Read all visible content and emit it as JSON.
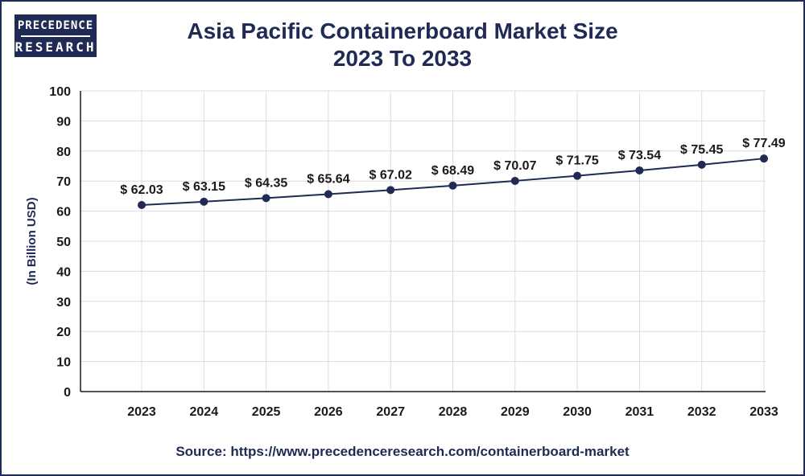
{
  "logo": {
    "line1": "PRECEDENCE",
    "line2": "RESEARCH"
  },
  "header": {
    "title_line1": "Asia Pacific Containerboard Market Size",
    "title_line2": "2023 To 2033"
  },
  "footer": {
    "source": "Source: https://www.precedenceresearch.com/containerboard-market"
  },
  "colors": {
    "line": "#1f2a55",
    "marker": "#1f2a55",
    "grid": "#dcdcdc",
    "axis": "#1a1a1a"
  },
  "chart_data": {
    "type": "line",
    "title": "Asia Pacific Containerboard Market Size 2023 To 2033",
    "xlabel": "",
    "ylabel": "(In Billion USD)",
    "ylim": [
      0,
      100
    ],
    "yticks": [
      0,
      10,
      20,
      30,
      40,
      50,
      60,
      70,
      80,
      90,
      100
    ],
    "grid": true,
    "x": [
      "2023",
      "2024",
      "2025",
      "2026",
      "2027",
      "2028",
      "2029",
      "2030",
      "2031",
      "2032",
      "2033"
    ],
    "series": [
      {
        "values": [
          62.03,
          63.15,
          64.35,
          65.64,
          67.02,
          68.49,
          70.07,
          71.75,
          73.54,
          75.45,
          77.49
        ],
        "labels": [
          "$ 62.03",
          "$ 63.15",
          "$ 64.35",
          "$ 65.64",
          "$ 67.02",
          "$ 68.49",
          "$ 70.07",
          "$ 71.75",
          "$ 73.54",
          "$ 75.45",
          "$ 77.49"
        ]
      }
    ]
  }
}
